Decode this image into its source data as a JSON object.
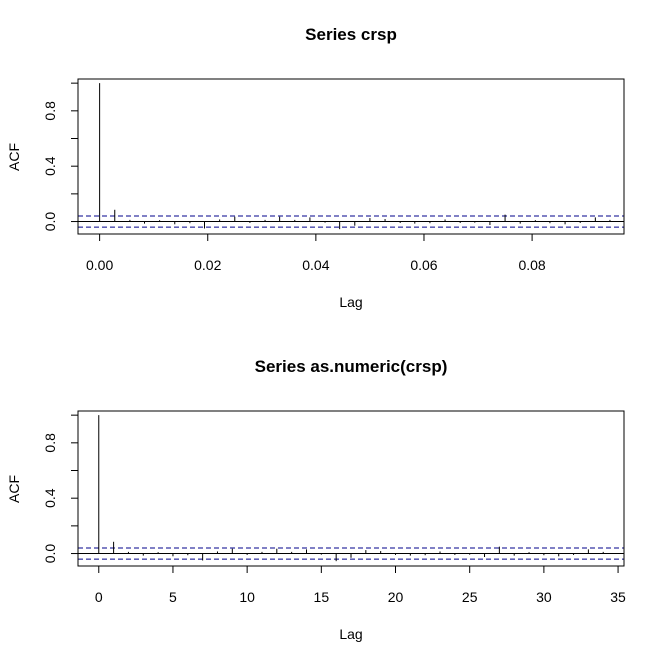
{
  "colors": {
    "confidence_band": "#00008b",
    "acf_line": "#000000",
    "frame": "#000000"
  },
  "chart_data": [
    {
      "type": "bar",
      "title": "Series  crsp",
      "xlabel": "Lag",
      "ylabel": "ACF",
      "xlim": [
        -0.004,
        0.097
      ],
      "ylim": [
        -0.09,
        1.03
      ],
      "x_ticks": [
        0.0,
        0.02,
        0.04,
        0.06,
        0.08
      ],
      "x_tick_labels": [
        "0.00",
        "0.02",
        "0.04",
        "0.06",
        "0.08"
      ],
      "y_ticks": [
        0.0,
        0.2,
        0.4,
        0.6,
        0.8,
        1.0
      ],
      "y_tick_labels": [
        "0.0",
        "",
        "0.4",
        "",
        "0.8",
        ""
      ],
      "confidence_limit": 0.04,
      "zero_line": true,
      "grid": false,
      "x": [
        0.0,
        0.0028,
        0.0056,
        0.0083,
        0.0111,
        0.0139,
        0.0167,
        0.0194,
        0.0222,
        0.025,
        0.0278,
        0.0306,
        0.0333,
        0.0361,
        0.0389,
        0.0417,
        0.0444,
        0.0472,
        0.05,
        0.0528,
        0.0556,
        0.0583,
        0.0611,
        0.0639,
        0.0667,
        0.0694,
        0.0722,
        0.075,
        0.0778,
        0.0806,
        0.0833,
        0.0861,
        0.0889,
        0.0917,
        0.0944
      ],
      "values": [
        1.0,
        0.085,
        0.012,
        -0.015,
        0.01,
        -0.02,
        -0.012,
        -0.05,
        0.015,
        0.035,
        -0.01,
        0.012,
        0.035,
        0.012,
        0.03,
        -0.008,
        -0.055,
        -0.03,
        0.025,
        0.018,
        -0.01,
        -0.015,
        -0.012,
        0.015,
        -0.01,
        -0.008,
        -0.025,
        0.05,
        -0.015,
        0.01,
        -0.012,
        -0.02,
        -0.01,
        0.03,
        0.012
      ]
    },
    {
      "type": "bar",
      "title": "Series  as.numeric(crsp)",
      "xlabel": "Lag",
      "ylabel": "ACF",
      "xlim": [
        -1.4,
        35.4
      ],
      "ylim": [
        -0.09,
        1.03
      ],
      "x_ticks": [
        0,
        5,
        10,
        15,
        20,
        25,
        30,
        35
      ],
      "x_tick_labels": [
        "0",
        "5",
        "10",
        "15",
        "20",
        "25",
        "30",
        "35"
      ],
      "y_ticks": [
        0.0,
        0.2,
        0.4,
        0.6,
        0.8,
        1.0
      ],
      "y_tick_labels": [
        "0.0",
        "",
        "0.4",
        "",
        "0.8",
        ""
      ],
      "confidence_limit": 0.04,
      "zero_line": true,
      "grid": false,
      "x": [
        0,
        1,
        2,
        3,
        4,
        5,
        6,
        7,
        8,
        9,
        10,
        11,
        12,
        13,
        14,
        15,
        16,
        17,
        18,
        19,
        20,
        21,
        22,
        23,
        24,
        25,
        26,
        27,
        28,
        29,
        30,
        31,
        32,
        33,
        34
      ],
      "values": [
        1.0,
        0.085,
        0.012,
        -0.015,
        0.01,
        -0.02,
        -0.012,
        -0.05,
        0.015,
        0.035,
        -0.01,
        0.012,
        0.035,
        0.012,
        0.03,
        -0.008,
        -0.055,
        -0.03,
        0.025,
        0.018,
        -0.01,
        -0.015,
        -0.012,
        0.015,
        -0.01,
        -0.008,
        -0.025,
        0.05,
        -0.015,
        0.01,
        -0.012,
        -0.02,
        -0.01,
        0.03,
        0.012
      ]
    }
  ]
}
